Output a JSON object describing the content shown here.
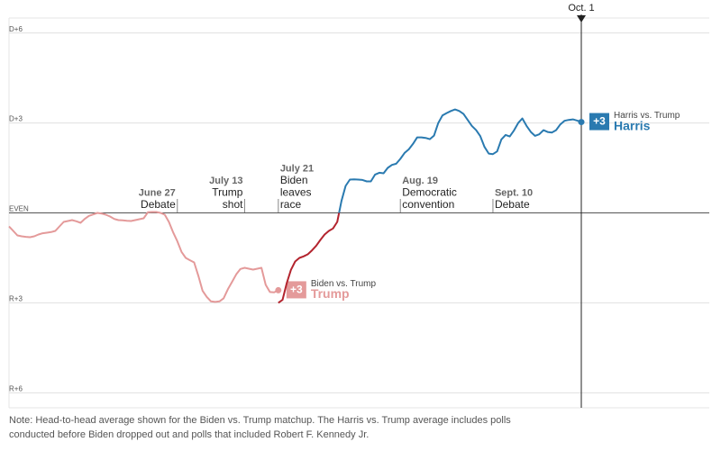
{
  "chart_data": {
    "type": "line",
    "categories": [
      null,
      null,
      null,
      null,
      null,
      null,
      null,
      null,
      null,
      null,
      null,
      null,
      null,
      null,
      null,
      null,
      null,
      null,
      null,
      null,
      null,
      null,
      null,
      null,
      null,
      null,
      null,
      null,
      null,
      null,
      null,
      null,
      null,
      null,
      null,
      null,
      null,
      null,
      null,
      null,
      "June 27",
      null,
      null,
      null,
      null,
      null,
      null,
      null,
      null,
      null,
      null,
      null,
      null,
      null,
      null,
      null,
      "July 13",
      null,
      null,
      null,
      null,
      null,
      null,
      null,
      "July 21",
      null,
      null,
      null,
      null,
      null,
      null,
      null,
      null,
      null,
      null,
      null,
      null,
      null,
      null,
      null,
      null,
      null,
      null,
      null,
      null,
      null,
      null,
      null,
      null,
      null,
      null,
      null,
      null,
      "Aug. 19",
      null,
      null,
      null,
      null,
      null,
      null,
      null,
      null,
      null,
      null,
      null,
      null,
      null,
      null,
      null,
      null,
      null,
      null,
      null,
      null,
      null,
      "Sept. 10",
      null,
      null,
      null,
      null,
      null,
      null,
      null,
      null,
      null,
      null,
      null,
      null,
      null,
      null,
      null,
      null,
      null,
      null,
      null,
      null,
      "Oct. 1"
    ],
    "series": [
      {
        "name": "Biden vs. Trump",
        "leader": "Trump",
        "end_value_label": "+3",
        "color": "#e49a9a",
        "values": [
          -0.45,
          -0.6,
          -0.75,
          -0.78,
          -0.8,
          -0.81,
          -0.78,
          -0.72,
          -0.68,
          -0.66,
          -0.64,
          -0.6,
          -0.45,
          -0.3,
          -0.27,
          -0.24,
          -0.28,
          -0.33,
          -0.2,
          -0.1,
          -0.05,
          0,
          -0.02,
          -0.06,
          -0.12,
          -0.2,
          -0.24,
          -0.25,
          -0.26,
          -0.27,
          -0.24,
          -0.21,
          -0.18,
          0.02,
          0.03,
          0.03,
          0,
          -0.06,
          -0.3,
          -0.65,
          -0.95,
          -1.3,
          -1.5,
          -1.58,
          -1.65,
          -2.1,
          -2.6,
          -2.8,
          -2.95,
          -2.97,
          -2.95,
          -2.85,
          -2.55,
          -2.3,
          -2.05,
          -1.87,
          -1.83,
          -1.86,
          -1.89,
          -1.86,
          -1.83,
          -2.4,
          -2.64,
          -2.65,
          -2.58,
          null,
          null,
          null,
          null,
          null,
          null,
          null,
          null,
          null,
          null,
          null,
          null,
          null,
          null,
          null,
          null,
          null,
          null,
          null,
          null,
          null,
          null,
          null,
          null,
          null,
          null,
          null,
          null,
          null,
          null,
          null,
          null,
          null,
          null,
          null,
          null,
          null,
          null,
          null,
          null,
          null,
          null,
          null,
          null,
          null,
          null,
          null,
          null,
          null,
          null,
          null,
          null,
          null,
          null,
          null,
          null,
          null,
          null,
          null,
          null,
          null,
          null,
          null,
          null,
          null,
          null,
          null,
          null,
          null,
          null,
          null,
          null
        ]
      },
      {
        "name": "Harris vs. Trump",
        "leader": "Harris",
        "end_value_label": "+3",
        "color": "#2a7ab0",
        "negative_color": "#b3242e",
        "values": [
          null,
          null,
          null,
          null,
          null,
          null,
          null,
          null,
          null,
          null,
          null,
          null,
          null,
          null,
          null,
          null,
          null,
          null,
          null,
          null,
          null,
          null,
          null,
          null,
          null,
          null,
          null,
          null,
          null,
          null,
          null,
          null,
          null,
          null,
          null,
          null,
          null,
          null,
          null,
          null,
          null,
          null,
          null,
          null,
          null,
          null,
          null,
          null,
          null,
          null,
          null,
          null,
          null,
          null,
          null,
          null,
          null,
          null,
          null,
          null,
          null,
          null,
          null,
          null,
          -3.0,
          -2.9,
          -2.34,
          -1.9,
          -1.62,
          -1.5,
          -1.45,
          -1.38,
          -1.25,
          -1.1,
          -0.9,
          -0.72,
          -0.6,
          -0.52,
          -0.3,
          0.4,
          0.9,
          1.11,
          1.12,
          1.11,
          1.1,
          1.05,
          1.05,
          1.28,
          1.34,
          1.32,
          1.5,
          1.6,
          1.64,
          1.8,
          2.0,
          2.12,
          2.3,
          2.52,
          2.52,
          2.5,
          2.46,
          2.58,
          3.0,
          3.25,
          3.33,
          3.4,
          3.45,
          3.4,
          3.3,
          3.1,
          2.9,
          2.76,
          2.56,
          2.2,
          1.98,
          1.96,
          2.05,
          2.45,
          2.6,
          2.55,
          2.75,
          3.0,
          3.15,
          2.9,
          2.7,
          2.57,
          2.62,
          2.76,
          2.7,
          2.68,
          2.76,
          2.95,
          3.07,
          3.1,
          3.12,
          3.08,
          3.03
        ]
      }
    ],
    "annotations": [
      {
        "date": "June 27",
        "lines": [
          "Debate"
        ]
      },
      {
        "date": "July 13",
        "lines": [
          "Trump",
          "shot"
        ]
      },
      {
        "date": "July 21",
        "lines": [
          "Biden",
          "leaves",
          "race"
        ]
      },
      {
        "date": "Aug. 19",
        "lines": [
          "Democratic",
          "convention"
        ]
      },
      {
        "date": "Sept. 10",
        "lines": [
          "Debate"
        ]
      }
    ],
    "marker_date": "Oct. 1",
    "ylim": [
      -6.5,
      6.5
    ],
    "yticks": [
      {
        "value": 6,
        "label": "D+6"
      },
      {
        "value": 3,
        "label": "D+3"
      },
      {
        "value": 0,
        "label": "EVEN"
      },
      {
        "value": -3,
        "label": "R+3"
      },
      {
        "value": -6,
        "label": "R+6"
      }
    ],
    "grid": true,
    "note": [
      "Note: Head-to-head average shown for the Biden vs. Trump matchup. The Harris vs. Trump average includes polls",
      "conducted before Biden dropped out and polls that included Robert F. Kennedy Jr."
    ]
  }
}
